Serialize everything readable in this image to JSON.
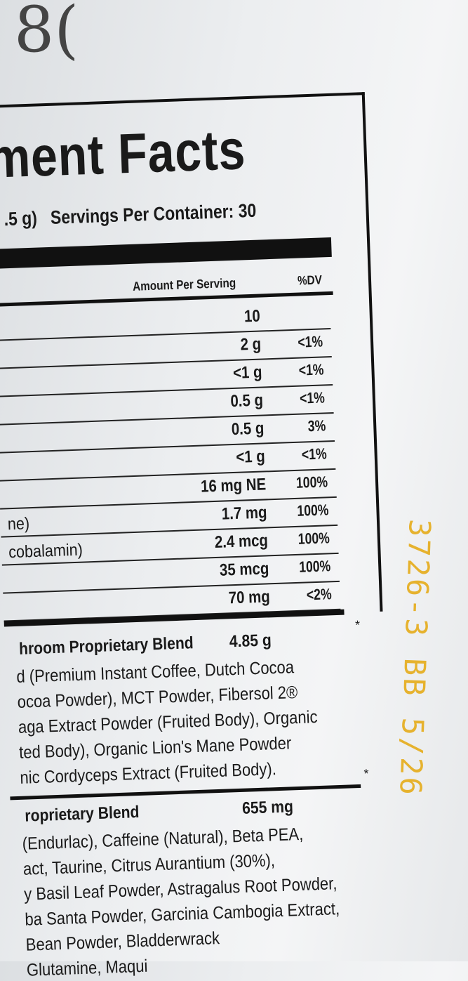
{
  "handwriting": "8(",
  "panel": {
    "title": "ment Facts",
    "serving_size": ".5 g)",
    "servings_per_container": "Servings Per Container: 30",
    "header_amount": "Amount Per Serving",
    "header_dv": "%DV",
    "rows": [
      {
        "label": "",
        "amount": "10",
        "dv": ""
      },
      {
        "label": "",
        "amount": "2 g",
        "dv": "<1%"
      },
      {
        "label": "",
        "amount": "<1 g",
        "dv": "<1%"
      },
      {
        "label": "",
        "amount": "0.5 g",
        "dv": "<1%"
      },
      {
        "label": "",
        "amount": "0.5 g",
        "dv": "3%"
      },
      {
        "label": "",
        "amount": "<1 g",
        "dv": "<1%"
      },
      {
        "label": "",
        "amount": "16 mg NE",
        "dv": "100%"
      },
      {
        "label": "ne)",
        "amount": "1.7 mg",
        "dv": "100%"
      },
      {
        "label": "cobalamin)",
        "amount": "2.4 mcg",
        "dv": "100%"
      },
      {
        "label": "",
        "amount": "35 mcg",
        "dv": "100%"
      },
      {
        "label": "",
        "amount": "70 mg",
        "dv": "<2%"
      }
    ],
    "asterisk": "*",
    "blend1": {
      "name": "hroom Proprietary Blend",
      "amount": "4.85 g",
      "lines": [
        "d (Premium Instant Coffee, Dutch Cocoa",
        "ocoa Powder), MCT Powder, Fibersol 2®",
        "aga Extract Powder (Fruited Body), Organic",
        "ted Body), Organic Lion's Mane Powder",
        "nic Cordyceps Extract (Fruited Body)."
      ]
    },
    "blend2": {
      "name": "roprietary Blend",
      "amount": "655 mg",
      "lines": [
        "(Endurlac), Caffeine (Natural), Beta PEA,",
        "act, Taurine, Citrus Aurantium (30%),",
        "y Basil Leaf Powder, Astragalus Root Powder,",
        "ba Santa Powder, Garcinia Cambogia Extract,",
        "Bean Powder, Bladderwrack",
        "Glutamine, Maqui"
      ]
    }
  },
  "lot_code": "3726-3  BB 5/26",
  "colors": {
    "ink": "#1a1a1a",
    "lot_ink": "#e6b22e",
    "background": "#eceef0"
  }
}
